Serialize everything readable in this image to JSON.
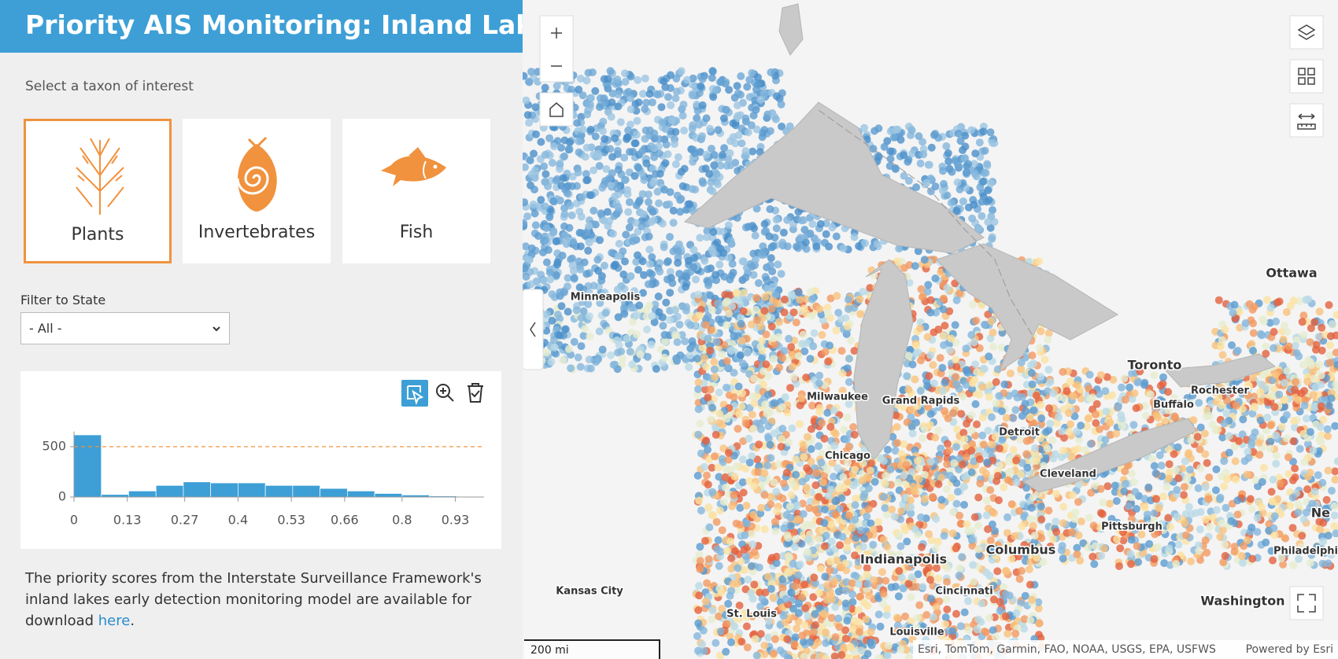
{
  "header": {
    "title": "Priority AIS Monitoring: Inland Lakes"
  },
  "taxon": {
    "prompt": "Select a taxon of interest",
    "options": [
      {
        "label": "Plants",
        "selected": true
      },
      {
        "label": "Invertebrates",
        "selected": false
      },
      {
        "label": "Fish",
        "selected": false
      }
    ]
  },
  "filter": {
    "label": "Filter to State",
    "value": "- All -"
  },
  "chart_data": {
    "type": "histogram",
    "bins": [
      0,
      0.0667,
      0.1333,
      0.2,
      0.2667,
      0.3333,
      0.4,
      0.4667,
      0.5333,
      0.6,
      0.6667,
      0.7333,
      0.8,
      0.8667,
      0.9333,
      1
    ],
    "values": [
      617,
      25,
      60,
      115,
      150,
      140,
      140,
      115,
      115,
      85,
      60,
      35,
      20,
      10,
      5
    ],
    "color": "#3d9fd6",
    "reference_line": 500,
    "reference_color": "#f0923e",
    "xlim": [
      0,
      1
    ],
    "xticks": [
      0,
      0.13,
      0.27,
      0.4,
      0.53,
      0.66,
      0.8,
      0.93
    ],
    "ylim": [
      0,
      650
    ],
    "yticks": [
      0,
      500
    ]
  },
  "description": {
    "text": "The priority scores from the Interstate Surveillance Framework's inland lakes early detection monitoring model are available for download ",
    "link": "here",
    "end": "."
  },
  "map": {
    "cities": [
      {
        "name": "Minneapolis",
        "big": false
      },
      {
        "name": "Milwaukee",
        "big": false
      },
      {
        "name": "Grand Rapids",
        "big": false
      },
      {
        "name": "Chicago",
        "big": false
      },
      {
        "name": "Detroit",
        "big": false
      },
      {
        "name": "Toronto",
        "big": true
      },
      {
        "name": "Buffalo",
        "big": false
      },
      {
        "name": "Rochester",
        "big": false
      },
      {
        "name": "Ottawa",
        "big": true
      },
      {
        "name": "Cleveland",
        "big": false
      },
      {
        "name": "Pittsburgh",
        "big": false
      },
      {
        "name": "Columbus",
        "big": true
      },
      {
        "name": "Indianapolis",
        "big": true
      },
      {
        "name": "Cincinnati",
        "big": false
      },
      {
        "name": "Kansas City",
        "big": false
      },
      {
        "name": "St. Louis",
        "big": false
      },
      {
        "name": "Louisville",
        "big": false
      },
      {
        "name": "Washington",
        "big": true
      },
      {
        "name": "Philadelphi",
        "big": false
      },
      {
        "name": "Ne",
        "big": true
      }
    ],
    "scale": "200 mi",
    "attribution": "Esri, TomTom, Garmin, FAO, NOAA, USGS, EPA, USFWS",
    "powered": "Powered by Esri"
  }
}
